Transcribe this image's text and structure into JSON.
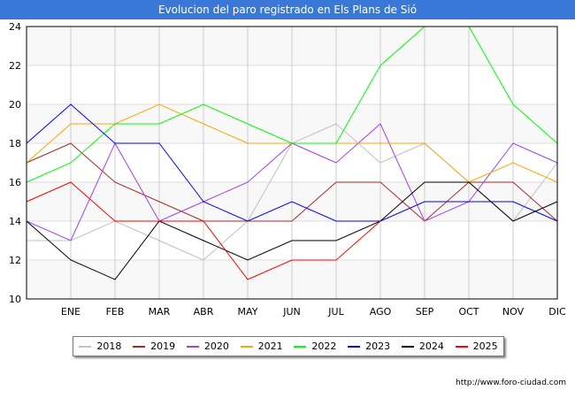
{
  "chart_data": {
    "type": "line",
    "title": "Evolucion del paro registrado en Els Plans de Sió",
    "categories": [
      "",
      "ENE",
      "FEB",
      "MAR",
      "ABR",
      "MAY",
      "JUN",
      "JUL",
      "AGO",
      "SEP",
      "OCT",
      "NOV",
      "DIC"
    ],
    "ylim": [
      10,
      24
    ],
    "yticks": [
      10,
      12,
      14,
      16,
      18,
      20,
      22,
      24
    ],
    "grid": true,
    "legend": "bottom",
    "series": [
      {
        "name": "2018",
        "color": "#c0c0c0",
        "values": [
          13,
          13,
          14,
          13,
          12,
          14,
          18,
          19,
          17,
          18,
          16,
          14,
          17
        ]
      },
      {
        "name": "2019",
        "color": "#a52a2a",
        "values": [
          17,
          18,
          16,
          15,
          14,
          14,
          14,
          16,
          16,
          14,
          16,
          16,
          14
        ]
      },
      {
        "name": "2020",
        "color": "#a040f0",
        "values": [
          14,
          13,
          18,
          14,
          15,
          16,
          18,
          17,
          19,
          14,
          15,
          18,
          17
        ]
      },
      {
        "name": "2021",
        "color": "#ffa500",
        "values": [
          17,
          19,
          19,
          20,
          19,
          18,
          18,
          18,
          18,
          18,
          16,
          17,
          16
        ]
      },
      {
        "name": "2022",
        "color": "#00ff00",
        "values": [
          16,
          17,
          19,
          19,
          20,
          19,
          18,
          18,
          22,
          24,
          24,
          20,
          18
        ]
      },
      {
        "name": "2023",
        "color": "#0000ff",
        "values": [
          18,
          20,
          18,
          18,
          15,
          14,
          15,
          14,
          14,
          15,
          15,
          15,
          14
        ]
      },
      {
        "name": "2024",
        "color": "#000000",
        "values": [
          14,
          12,
          11,
          14,
          13,
          12,
          13,
          13,
          14,
          16,
          16,
          14,
          15
        ]
      },
      {
        "name": "2025",
        "color": "#ff0000",
        "values": [
          15,
          16,
          14,
          14,
          14,
          11,
          12,
          12,
          14,
          null,
          null,
          null,
          null
        ]
      }
    ]
  },
  "footer": "http://www.foro-ciudad.com"
}
